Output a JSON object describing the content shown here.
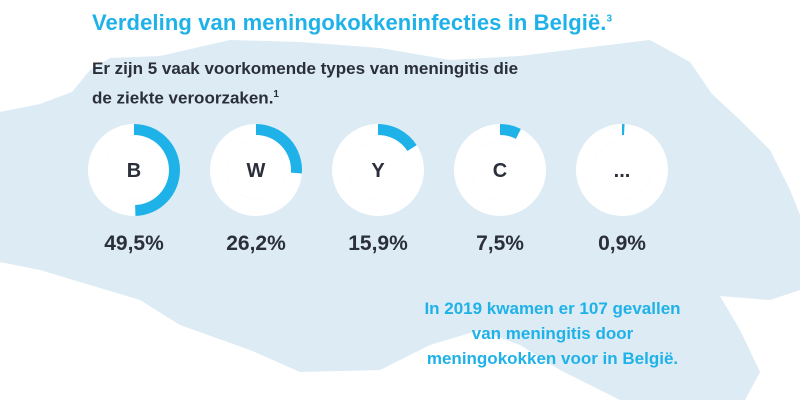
{
  "header": {
    "title": "Verdeling van meningokokkeninfecties in België.",
    "title_ref": "3",
    "subtitle_line1": "Er zijn 5 vaak voorkomende types van meningitis die",
    "subtitle_line2": "de ziekte veroorzaken.",
    "subtitle_ref": "1"
  },
  "note": {
    "line1": "In 2019 kwamen er 107 gevallen",
    "line2": "van meningitis door",
    "line3": "meningokokken voor in België."
  },
  "colors": {
    "accent": "#1fb2e8",
    "ring_background": "#ffffff",
    "map_fill": "#dcebf4",
    "text_dark": "#2a2f3a"
  },
  "chart_data": {
    "type": "pie",
    "title": "Verdeling van meningokokkeninfecties in België.",
    "categories": [
      "B",
      "W",
      "Y",
      "C",
      "..."
    ],
    "values": [
      49.5,
      26.2,
      15.9,
      7.5,
      0.9
    ],
    "value_labels": [
      "49,5%",
      "26,2%",
      "15,9%",
      "7,5%",
      "0,9%"
    ],
    "unit": "%",
    "xlabel": "",
    "ylabel": ""
  }
}
